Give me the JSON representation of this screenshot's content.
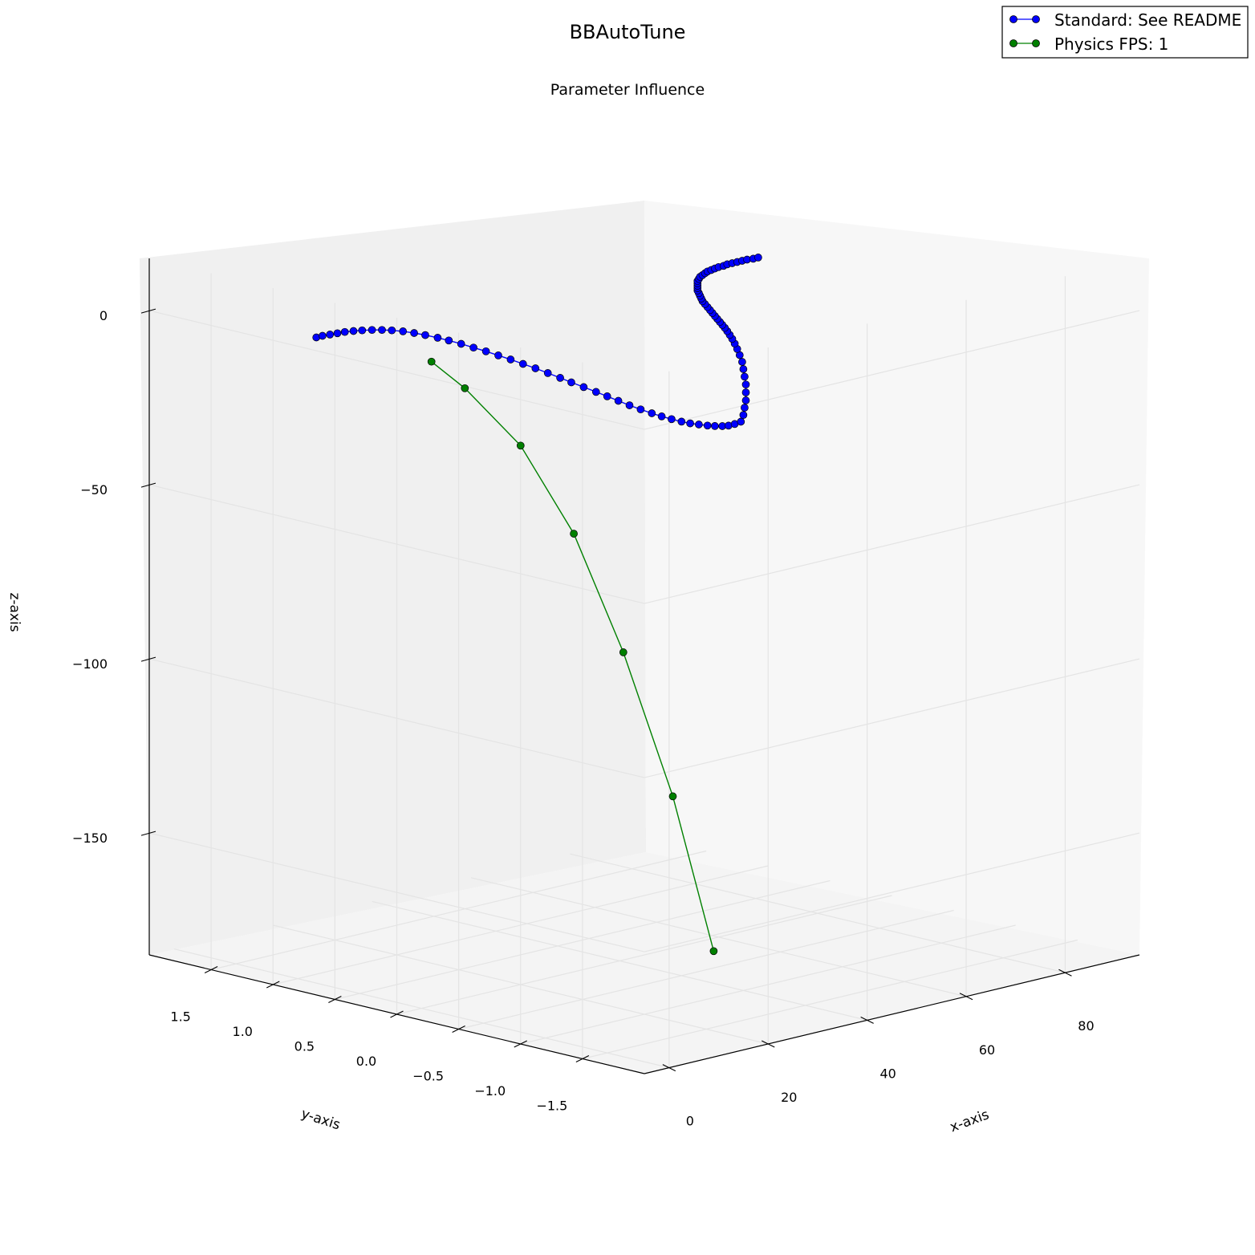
{
  "chart_data": {
    "type": "line",
    "projection": "3d",
    "title": "BBAutoTune",
    "subtitle": "Parameter Influence",
    "xlabel": "x-axis",
    "ylabel": "y-axis",
    "zlabel": "z-axis",
    "x_ticks": [
      0,
      20,
      40,
      60,
      80
    ],
    "y_ticks": [
      1.5,
      1.0,
      0.5,
      0.0,
      -0.5,
      -1.0,
      -1.5
    ],
    "y_tick_labels": [
      "1.5",
      "1.0",
      "0.5",
      "0.0",
      "−0.5",
      "−1.0",
      "−1.5"
    ],
    "z_ticks": [
      0,
      -50,
      -100,
      -150
    ],
    "z_tick_labels": [
      "0",
      "−50",
      "−100",
      "−150"
    ],
    "xlim": [
      -5,
      95
    ],
    "ylim": [
      -2,
      2
    ],
    "zlim": [
      -185,
      15
    ],
    "grid": true,
    "legend_position": "top-right",
    "series": [
      {
        "name": "Standard: See README",
        "color": "#0000ff",
        "marker": "circle",
        "x": [
          0,
          1,
          2,
          3,
          4,
          5,
          6,
          7,
          8,
          9,
          10,
          11,
          12,
          13,
          14,
          15,
          16,
          17,
          18,
          19,
          20,
          21,
          22,
          23,
          24,
          25,
          26,
          27,
          28,
          29,
          30,
          31,
          32,
          33,
          34,
          35,
          36,
          37,
          38,
          39,
          40,
          41,
          42,
          43,
          44,
          45,
          46,
          47,
          48,
          49,
          50,
          51,
          52,
          53,
          54,
          55,
          56,
          57,
          58,
          59,
          60,
          61,
          62,
          63,
          64,
          65,
          66,
          67,
          68,
          69,
          70,
          71,
          72,
          73,
          74,
          75,
          76,
          77,
          78,
          79,
          80,
          81,
          82,
          83,
          84,
          85,
          86,
          87,
          88,
          89,
          90
        ],
        "y": [
          0.85,
          0.84,
          0.82,
          0.8,
          0.78,
          0.75,
          0.72,
          0.68,
          0.64,
          0.6,
          0.55,
          0.5,
          0.45,
          0.39,
          0.34,
          0.28,
          0.22,
          0.16,
          0.1,
          0.04,
          -0.02,
          -0.08,
          -0.14,
          -0.2,
          -0.25,
          -0.31,
          -0.37,
          -0.42,
          -0.47,
          -0.52,
          -0.57,
          -0.62,
          -0.66,
          -0.7,
          -0.74,
          -0.77,
          -0.8,
          -0.83,
          -0.85,
          -0.87,
          -0.88,
          -0.89,
          -0.9,
          -0.88,
          -0.85,
          -0.82,
          -0.78,
          -0.74,
          -0.69,
          -0.64,
          -0.59,
          -0.53,
          -0.47,
          -0.41,
          -0.35,
          -0.29,
          -0.23,
          -0.17,
          -0.11,
          -0.05,
          0.01,
          0.07,
          0.13,
          0.19,
          0.25,
          0.31,
          0.37,
          0.42,
          0.47,
          0.52,
          0.57,
          0.61,
          0.65,
          0.69,
          0.73,
          0.76,
          0.79,
          0.81,
          0.83,
          0.85,
          0.86,
          0.87,
          0.88,
          0.88,
          0.89,
          0.89,
          0.89,
          0.89,
          0.89,
          0.88,
          0.88
        ],
        "z": [
          0.4,
          0.6,
          0.8,
          1.0,
          1.2,
          1.4,
          1.5,
          1.6,
          1.6,
          1.5,
          1.3,
          0.9,
          0.4,
          -0.2,
          -0.9,
          -1.7,
          -2.6,
          -3.5,
          -4.5,
          -5.5,
          -6.6,
          -7.7,
          -8.9,
          -10.1,
          -11.3,
          -12.5,
          -13.7,
          -14.9,
          -16.1,
          -17.3,
          -18.4,
          -19.4,
          -20.3,
          -21.1,
          -21.8,
          -22.4,
          -22.8,
          -23.2,
          -23.5,
          -23.7,
          -23.8,
          -23.6,
          -23.2,
          -21.8,
          -20.3,
          -18.8,
          -17.2,
          -15.6,
          -14.1,
          -12.7,
          -11.4,
          -10.3,
          -9.4,
          -8.7,
          -8.2,
          -7.9,
          -7.7,
          -7.6,
          -7.6,
          -7.6,
          -7.6,
          -7.6,
          -7.6,
          -7.6,
          -7.6,
          -7.6,
          -7.6,
          -7.6,
          -7.6,
          -7.6,
          -7.6,
          -7.6,
          -7.6,
          -7.6,
          -7.6,
          -7.6,
          -7.6,
          -7.6,
          -7.6,
          -7.6,
          -7.6,
          -7.6,
          -7.6,
          -7.6,
          -7.6,
          -7.6,
          -7.6,
          -7.6,
          -7.6,
          -7.6,
          -7.6
        ]
      },
      {
        "name": "Physics FPS: 1",
        "color": "#008000",
        "marker": "circle",
        "x": [
          2,
          3,
          5,
          7,
          9,
          12,
          14
        ],
        "y": [
          0.0,
          -0.23,
          -0.6,
          -0.95,
          -1.27,
          -1.55,
          -1.8
        ],
        "z": [
          0,
          -6,
          -20,
          -43,
          -75,
          -115,
          -158
        ]
      }
    ]
  }
}
